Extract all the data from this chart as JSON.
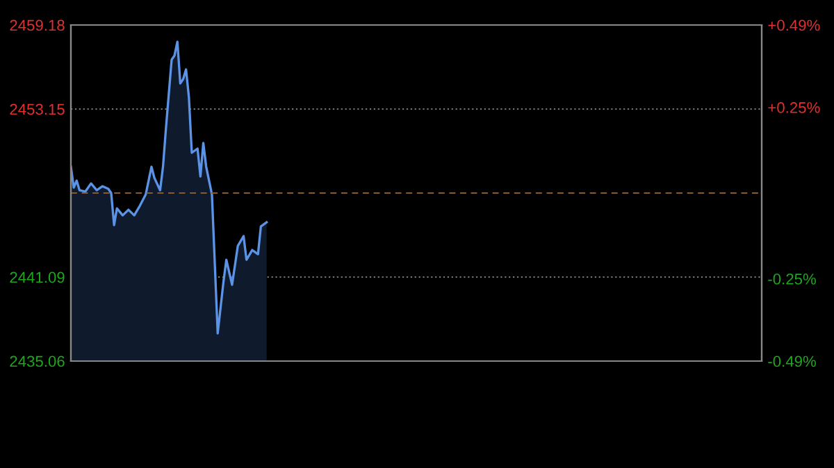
{
  "chart_data": {
    "type": "area",
    "categories": [
      null,
      null,
      null,
      null,
      null,
      null,
      null,
      null,
      null,
      null,
      null,
      null,
      null,
      null,
      null,
      null,
      null,
      null,
      null,
      null,
      null,
      null,
      null,
      null,
      null,
      null,
      null,
      null,
      null,
      null,
      null,
      null,
      null,
      null,
      null,
      null,
      null,
      null,
      null,
      null,
      null,
      null,
      null,
      null,
      null,
      null,
      null,
      null,
      null,
      null,
      null,
      null,
      null,
      null,
      null,
      null,
      null,
      null,
      null,
      null,
      null,
      null,
      null,
      null,
      null,
      null,
      null,
      null,
      null,
      null,
      null,
      null,
      null,
      null,
      null,
      null,
      null,
      null,
      null,
      null,
      null,
      null,
      null,
      null,
      null,
      null,
      null,
      null,
      null,
      null,
      null,
      null,
      null,
      null,
      null,
      null,
      null,
      null,
      null,
      null,
      null,
      null,
      null,
      null,
      null,
      null,
      null,
      null,
      null,
      null,
      null,
      null,
      null,
      null,
      null,
      null,
      null,
      null,
      null,
      null,
      null,
      null,
      null,
      null,
      null,
      null,
      null,
      null,
      null,
      null,
      null,
      null,
      null,
      null,
      null,
      null,
      null,
      null,
      null,
      null,
      null,
      null,
      null,
      null,
      null,
      null,
      null,
      null,
      null,
      null,
      null,
      null,
      null,
      null,
      null,
      null,
      null,
      null,
      null,
      null,
      null,
      null,
      null,
      null,
      null,
      null,
      null,
      null,
      null,
      null,
      null,
      null,
      null,
      null,
      null,
      null,
      null,
      null,
      null,
      null,
      null,
      null,
      null,
      null,
      null,
      null,
      null,
      null,
      null,
      null,
      null,
      null,
      null,
      null,
      null,
      null,
      null,
      null,
      null,
      null,
      null,
      null,
      null,
      null,
      null,
      null,
      null,
      null,
      null,
      null,
      null,
      null,
      null,
      null,
      null,
      null,
      null,
      null,
      null,
      null,
      null,
      null,
      null,
      null,
      null,
      null,
      null,
      null,
      null,
      null,
      null,
      null,
      null,
      null,
      null,
      null,
      null,
      null,
      null,
      null,
      null
    ],
    "series": [
      {
        "color": "#5b93e6",
        "values": [
          2449.01,
          2447.51,
          2448.01,
          2447.32,
          null,
          2447.22,
          null,
          2447.81,
          null,
          2447.32,
          null,
          2447.61,
          null,
          2447.42,
          2447.12,
          2444.82,
          2446.02,
          null,
          2445.52,
          null,
          2445.92,
          null,
          2445.52,
          null,
          2446.22,
          null,
          2447.02,
          null,
          2449.01,
          2448.21,
          null,
          2447.32,
          2449.01,
          2451.7,
          null,
          2456.69,
          2456.99,
          2457.98,
          2454.99,
          2455.29,
          2455.99,
          2453.99,
          2450.01,
          null,
          2450.31,
          2448.31,
          2450.71,
          2449.01,
          2448.01,
          2447.02,
          2442.03,
          2437.05,
          null,
          2440.74,
          2442.33,
          null,
          2440.54,
          null,
          2443.33,
          null,
          2444.03,
          2442.33,
          null,
          2443.03,
          null,
          2442.73,
          2444.72,
          null,
          2445.02,
          null,
          null,
          null,
          null,
          null,
          null,
          null,
          null,
          null,
          null,
          null,
          null,
          null,
          null,
          null,
          null,
          null,
          null,
          null,
          null,
          null,
          null,
          null,
          null,
          null,
          null,
          null,
          null,
          null,
          null,
          null,
          null,
          null,
          null,
          null,
          null,
          null,
          null,
          null,
          null,
          null,
          null,
          null,
          null,
          null,
          null,
          null,
          null,
          null,
          null,
          null,
          null,
          null,
          null,
          null,
          null,
          null,
          null,
          null,
          null,
          null,
          null,
          null,
          null,
          null,
          null,
          null,
          null,
          null,
          null,
          null,
          null,
          null,
          null,
          null,
          null,
          null,
          null,
          null,
          null,
          null,
          null,
          null,
          null,
          null,
          null,
          null,
          null,
          null,
          null,
          null,
          null,
          null,
          null,
          null,
          null,
          null,
          null,
          null,
          null,
          null,
          null,
          null,
          null,
          null,
          null,
          null,
          null,
          null,
          null,
          null,
          null,
          null,
          null,
          null,
          null,
          null,
          null,
          null,
          null,
          null,
          null,
          null,
          null,
          null,
          null,
          null,
          null,
          null,
          null,
          null,
          null,
          null,
          null,
          null,
          null,
          null,
          null,
          null,
          null,
          null,
          null,
          null,
          null,
          null,
          null,
          null,
          null,
          null,
          null,
          null,
          null,
          null,
          null,
          null,
          null,
          null,
          null,
          null,
          null,
          null,
          null,
          null,
          null,
          null,
          null,
          null,
          null,
          null,
          null,
          null,
          null
        ]
      }
    ],
    "ylim": [
      2435.06,
      2459.18
    ],
    "yticks": [
      2435.06,
      2441.09,
      2453.15,
      2459.18
    ],
    "y2lim": [
      -0.49,
      0.49
    ],
    "y2ticks": [
      {
        "value": -0.49,
        "label": "-0.49%"
      },
      {
        "value": -0.25,
        "label": "-0.25%"
      },
      {
        "value": 0.25,
        "label": "+0.25%"
      },
      {
        "value": 0.49,
        "label": "+0.49%"
      }
    ],
    "ref_lines": [
      {
        "axis": "y",
        "value": 2447.12,
        "color": "#8a5a2a",
        "line_style": "dashed"
      }
    ],
    "grid": "y",
    "tick_labels": "y"
  }
}
